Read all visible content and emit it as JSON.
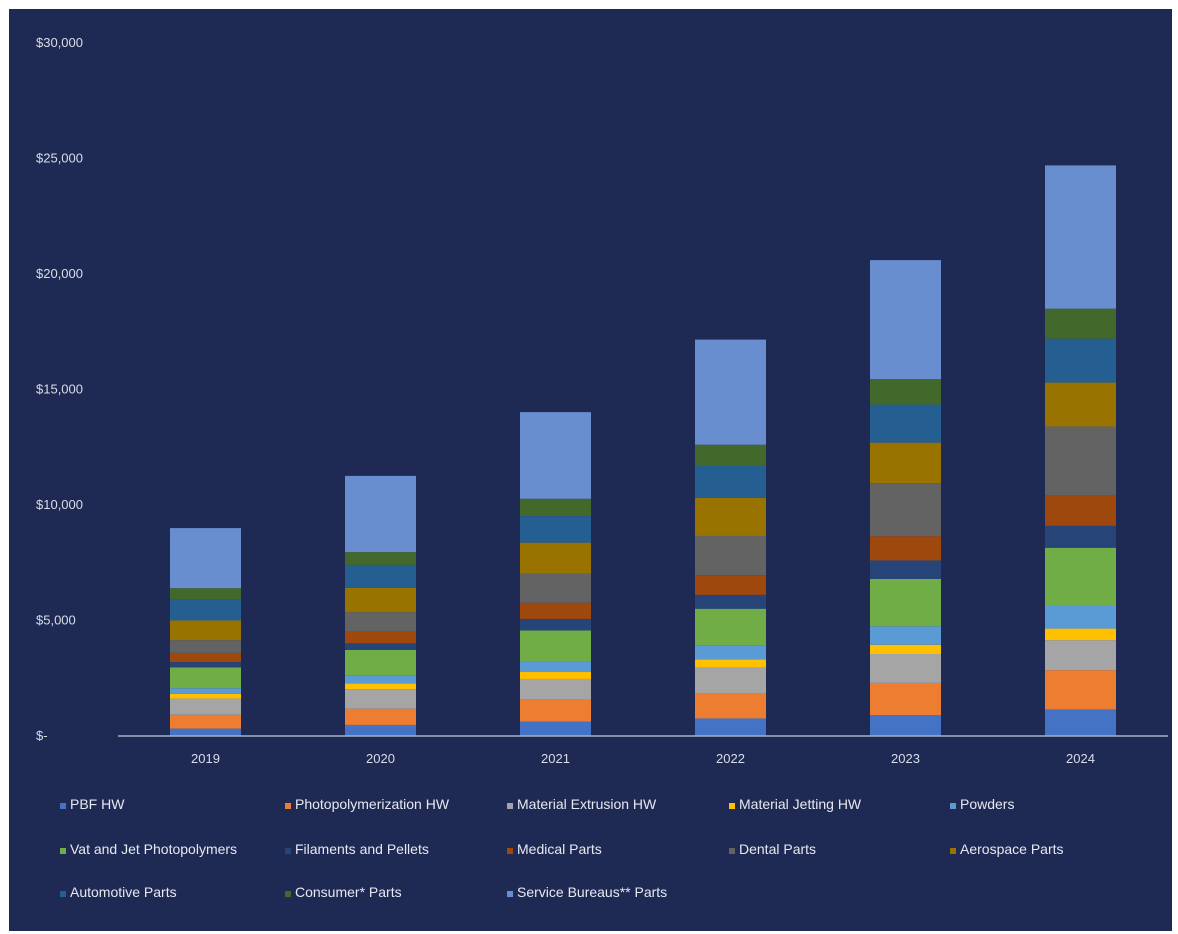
{
  "chart_data": {
    "type": "bar",
    "stacked": true,
    "title": "",
    "xlabel": "",
    "ylabel": "",
    "ylim": [
      0,
      30000
    ],
    "y_ticks": [
      {
        "value": 0,
        "label": "$-"
      },
      {
        "value": 5000,
        "label": "$5,000"
      },
      {
        "value": 10000,
        "label": "$10,000"
      },
      {
        "value": 15000,
        "label": "$15,000"
      },
      {
        "value": 20000,
        "label": "$20,000"
      },
      {
        "value": 25000,
        "label": "$25,000"
      },
      {
        "value": 30000,
        "label": "$30,000"
      }
    ],
    "grid": false,
    "legend_position": "bottom",
    "categories": [
      "2019",
      "2020",
      "2021",
      "2022",
      "2023",
      "2024"
    ],
    "series": [
      {
        "name": "PBF HW",
        "color": "#4472c4",
        "values": [
          320,
          480,
          620,
          760,
          900,
          1150
        ]
      },
      {
        "name": "Photopolymerization HW",
        "color": "#ed7d31",
        "values": [
          600,
          700,
          950,
          1100,
          1400,
          1700
        ]
      },
      {
        "name": "Material Extrusion HW",
        "color": "#a5a5a5",
        "values": [
          700,
          850,
          900,
          1100,
          1250,
          1300
        ]
      },
      {
        "name": "Material Jetting HW",
        "color": "#ffc000",
        "values": [
          200,
          250,
          300,
          350,
          400,
          500
        ]
      },
      {
        "name": "Powders",
        "color": "#5b9bd5",
        "values": [
          250,
          350,
          450,
          600,
          800,
          1000
        ]
      },
      {
        "name": "Vat and Jet Photopolymers",
        "color": "#70ad47",
        "values": [
          900,
          1100,
          1350,
          1600,
          2050,
          2500
        ]
      },
      {
        "name": "Filaments and Pellets",
        "color": "#264478",
        "values": [
          230,
          280,
          500,
          600,
          800,
          950
        ]
      },
      {
        "name": "Medical Parts",
        "color": "#9e480e",
        "values": [
          400,
          500,
          700,
          850,
          1050,
          1300
        ]
      },
      {
        "name": "Dental Parts",
        "color": "#636363",
        "values": [
          550,
          850,
          1250,
          1700,
          2300,
          3000
        ]
      },
      {
        "name": "Aerospace Parts",
        "color": "#997300",
        "values": [
          850,
          1050,
          1350,
          1650,
          1750,
          1900
        ]
      },
      {
        "name": "Automotive Parts",
        "color": "#255e91",
        "values": [
          900,
          1000,
          1150,
          1400,
          1650,
          1900
        ]
      },
      {
        "name": "Consumer* Parts",
        "color": "#43682b",
        "values": [
          500,
          550,
          750,
          900,
          1100,
          1300
        ]
      },
      {
        "name": "Service Bureaus** Parts",
        "color": "#698ed0",
        "values": [
          2600,
          3300,
          3750,
          4550,
          5150,
          6200
        ]
      }
    ]
  }
}
